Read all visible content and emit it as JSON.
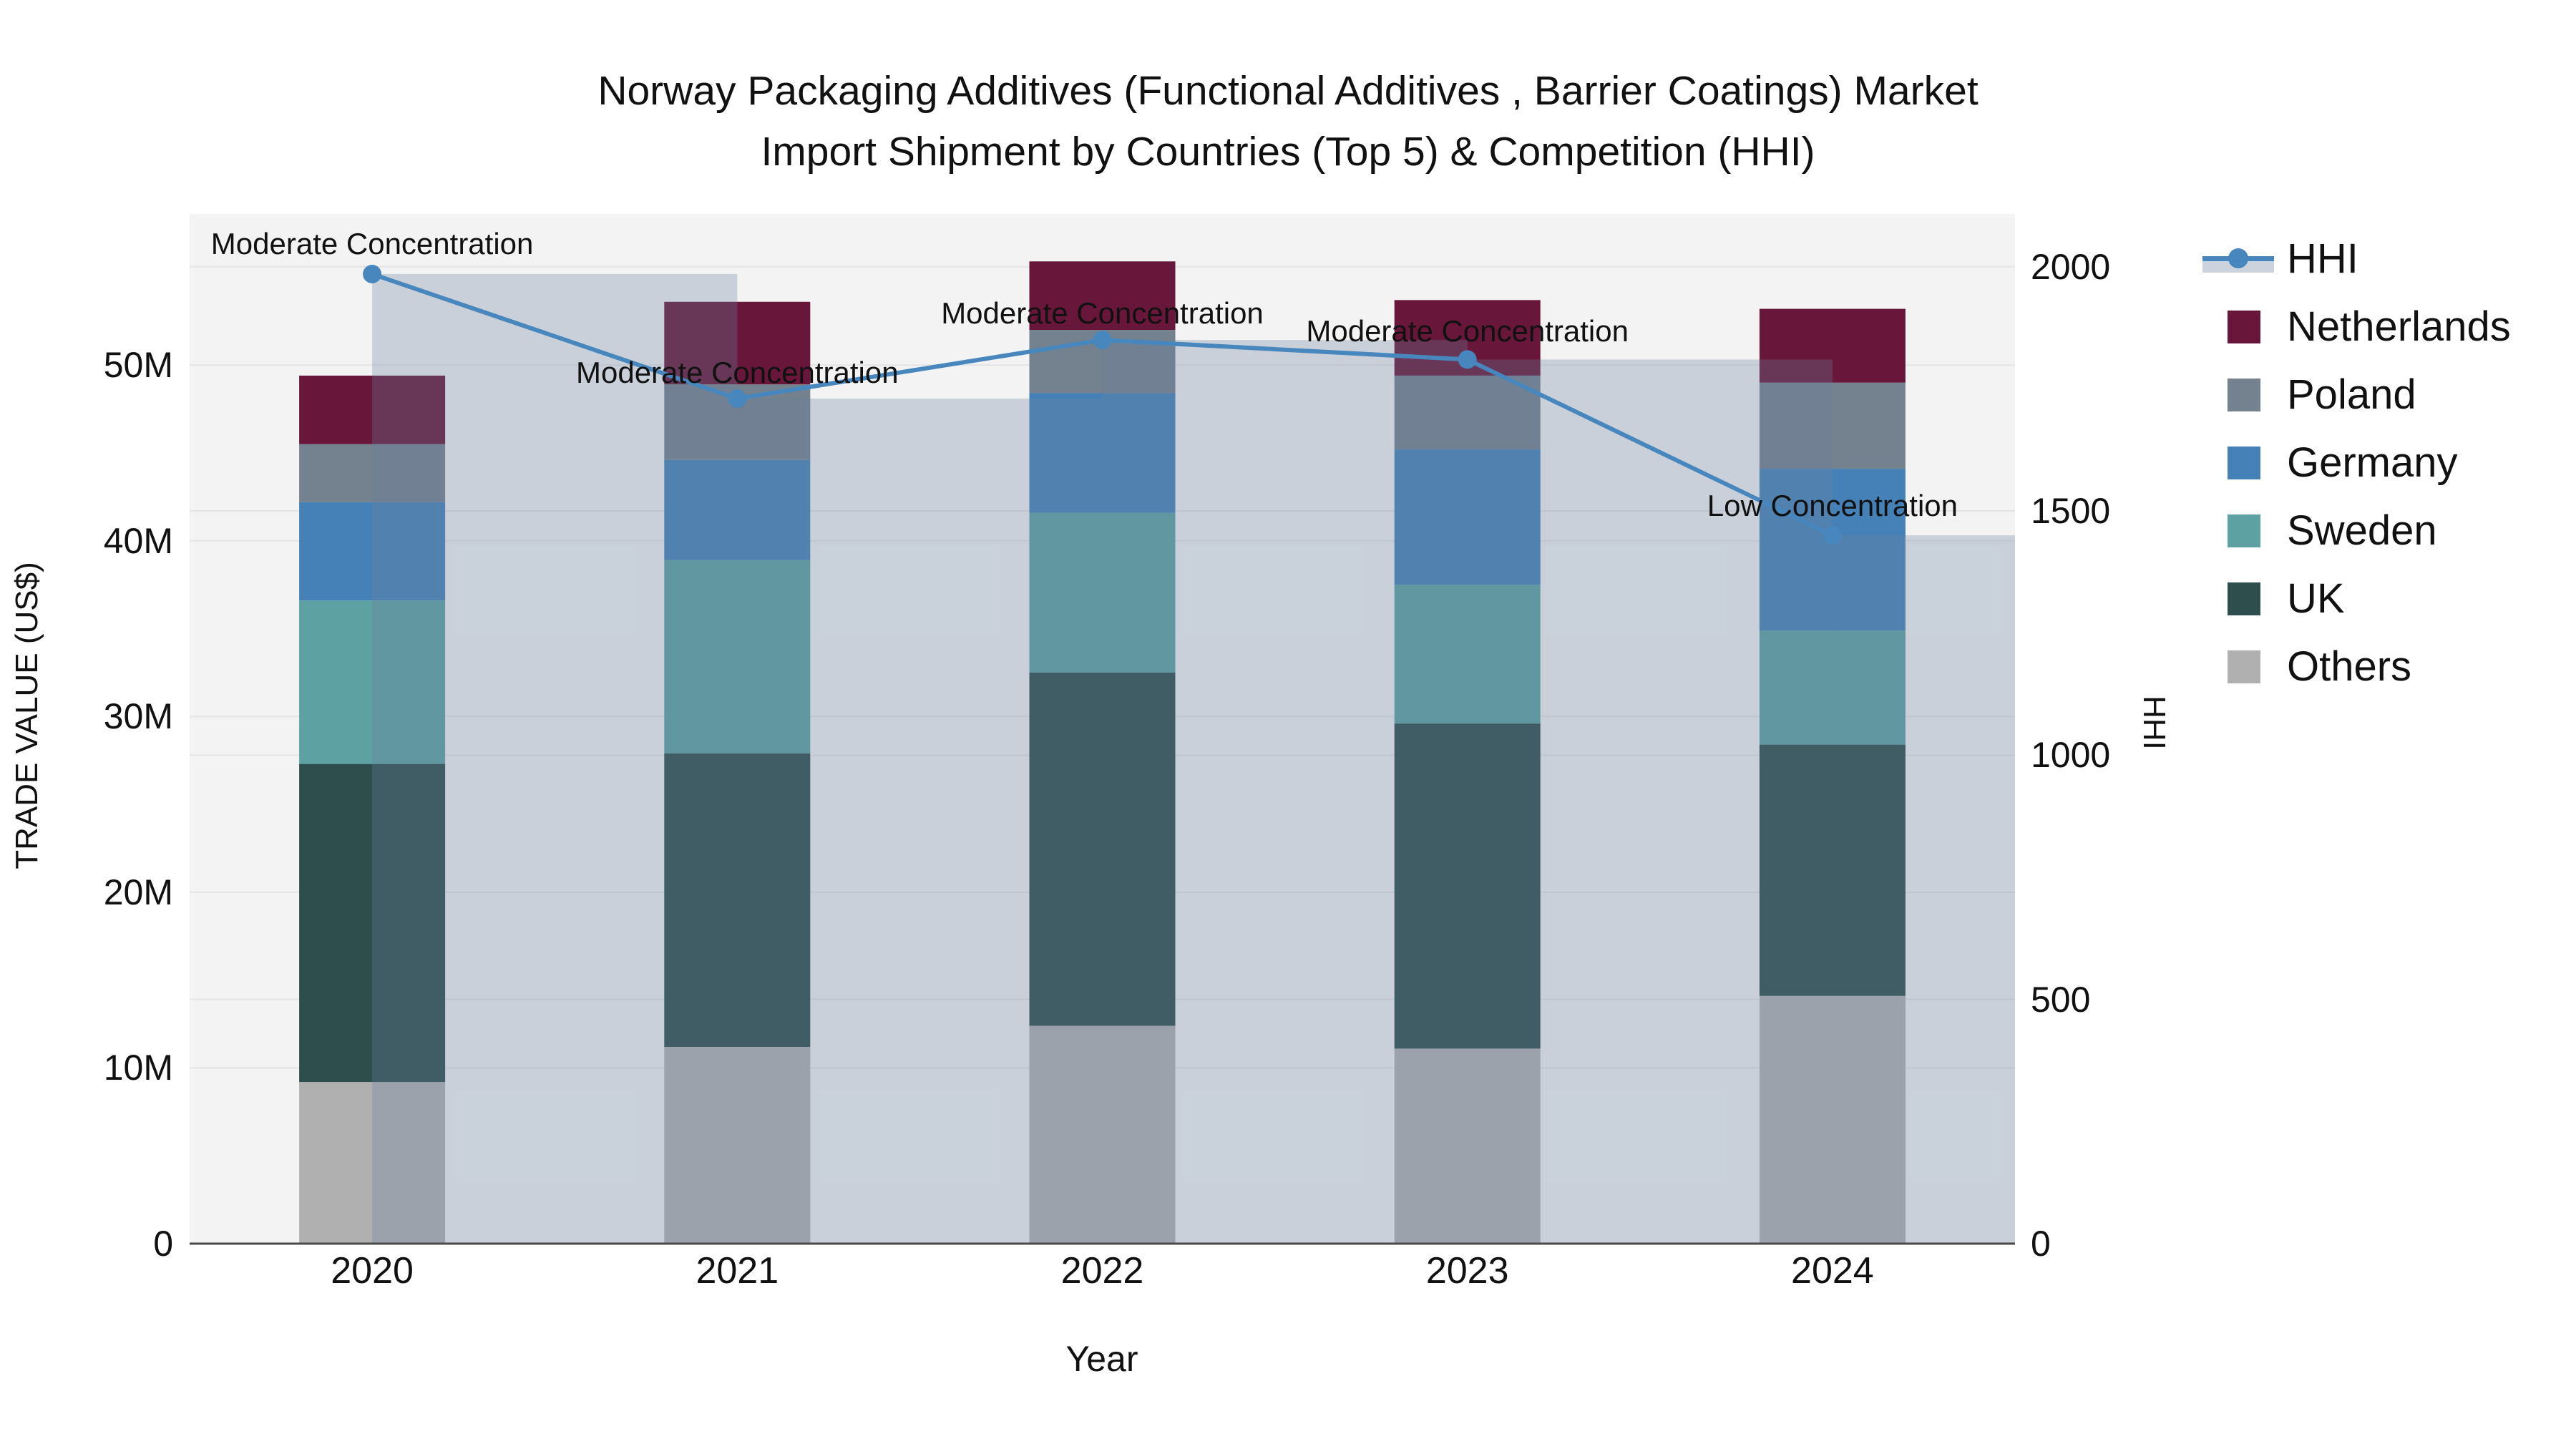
{
  "title": {
    "line1": "Norway Packaging Additives (Functional Additives , Barrier Coatings) Market",
    "line2": "Import Shipment by Countries (Top 5) & Competition (HHI)"
  },
  "axes": {
    "x": {
      "title": "Year"
    },
    "y_left": {
      "title": "TRADE VALUE (US$)",
      "tick_values": [
        0,
        10,
        20,
        30,
        40,
        50
      ],
      "tick_labels": [
        "0",
        "10M",
        "20M",
        "30M",
        "40M",
        "50M"
      ]
    },
    "y_right": {
      "title": "HHI",
      "tick_values": [
        0,
        500,
        1000,
        1500,
        2000
      ],
      "tick_labels": [
        "0",
        "500",
        "1000",
        "1500",
        "2000"
      ]
    }
  },
  "colors": {
    "page_bg": "#ffffff",
    "plot_bg": "#f3f3f3",
    "grid": "#e4e4e6",
    "axis_line": "#4a4a4a",
    "text": "#111111",
    "hhi_overlay_fill": "rgba(105,129,160,0.30)",
    "hhi_legend_band": "#ccd3dc"
  },
  "chart_data": {
    "type": "bar+line",
    "title": "Norway Packaging Additives (Functional Additives , Barrier Coatings) Market Import Shipment by Countries (Top 5) & Competition (HHI)",
    "categories": [
      "2020",
      "2021",
      "2022",
      "2023",
      "2024"
    ],
    "bar_value_unit": "USD millions (left axis, TRADE VALUE US$)",
    "stack_order_bottom_to_top": [
      "Others",
      "UK",
      "Sweden",
      "Germany",
      "Poland",
      "Netherlands"
    ],
    "series": [
      {
        "name": "Netherlands",
        "color": "#68173a",
        "values": [
          3.9,
          4.7,
          3.9,
          4.3,
          4.2
        ]
      },
      {
        "name": "Poland",
        "color": "#74828f",
        "values": [
          3.3,
          4.3,
          3.6,
          4.2,
          4.9
        ]
      },
      {
        "name": "Germany",
        "color": "#4581b6",
        "values": [
          5.6,
          5.7,
          6.8,
          7.7,
          9.2
        ]
      },
      {
        "name": "Sweden",
        "color": "#5da1a3",
        "values": [
          9.3,
          11.0,
          9.1,
          7.9,
          6.5
        ]
      },
      {
        "name": "UK",
        "color": "#2e4e4e",
        "values": [
          18.1,
          16.7,
          20.1,
          18.5,
          14.3
        ]
      },
      {
        "name": "Others",
        "color": "#b0b0b0",
        "values": [
          9.2,
          11.2,
          12.4,
          11.1,
          14.1
        ]
      }
    ],
    "bar_totals": [
      49.4,
      53.6,
      55.9,
      53.7,
      53.2
    ],
    "line": {
      "name": "HHI",
      "color": "#4787bd",
      "axis": "right",
      "values": [
        1985,
        1730,
        1850,
        1810,
        1450
      ]
    },
    "annotations": [
      {
        "category": "2020",
        "text": "Moderate Concentration",
        "y_right": 2047
      },
      {
        "category": "2021",
        "text": "Moderate Concentration",
        "y_right": 1783
      },
      {
        "category": "2022",
        "text": "Moderate Concentration",
        "y_right": 1905
      },
      {
        "category": "2023",
        "text": "Moderate Concentration",
        "y_right": 1868
      },
      {
        "category": "2024",
        "text": "Low Concentration",
        "y_right": 1511
      }
    ],
    "ylim_left": [
      0,
      58.6
    ],
    "ylim_right": [
      0,
      2108
    ],
    "grid": true,
    "legend_position": "top-right-outside",
    "legend_order": [
      "HHI",
      "Netherlands",
      "Poland",
      "Germany",
      "Sweden",
      "UK",
      "Others"
    ]
  }
}
